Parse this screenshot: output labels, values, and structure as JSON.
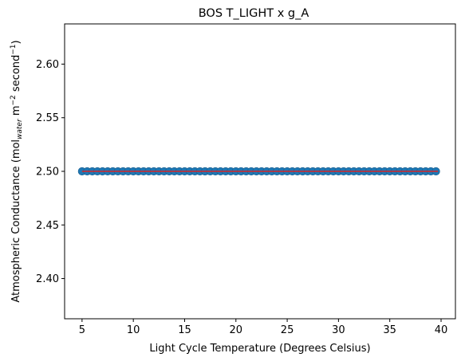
{
  "chart_data": {
    "type": "scatter",
    "title": "BOS T_LIGHT x g_A",
    "xlabel": "Light Cycle Temperature (Degrees Celsius)",
    "ylabel_parts": {
      "main": "Atmospheric Conductance (mol",
      "sub": "water",
      "mid": " m",
      "sup1": "−2",
      "mid2": " second",
      "sup2": "−1",
      "end": ")"
    },
    "xlim": [
      3.3,
      41.4
    ],
    "ylim": [
      2.3625,
      2.6375
    ],
    "xticks": [
      5,
      10,
      15,
      20,
      25,
      30,
      35,
      40
    ],
    "yticks": [
      2.4,
      2.45,
      2.5,
      2.55,
      2.6
    ],
    "ytick_labels": [
      "2.40",
      "2.45",
      "2.50",
      "2.55",
      "2.60"
    ],
    "x_start": 5.0,
    "x_end": 39.7,
    "x_step": 0.5,
    "y_value": 2.5,
    "series": [
      {
        "kind": "points",
        "color": "#1f77b4"
      },
      {
        "kind": "line",
        "color": "#d62728",
        "x": [
          5.0,
          39.7
        ],
        "y": [
          2.5,
          2.5
        ]
      }
    ],
    "grid": false,
    "legend": false
  }
}
